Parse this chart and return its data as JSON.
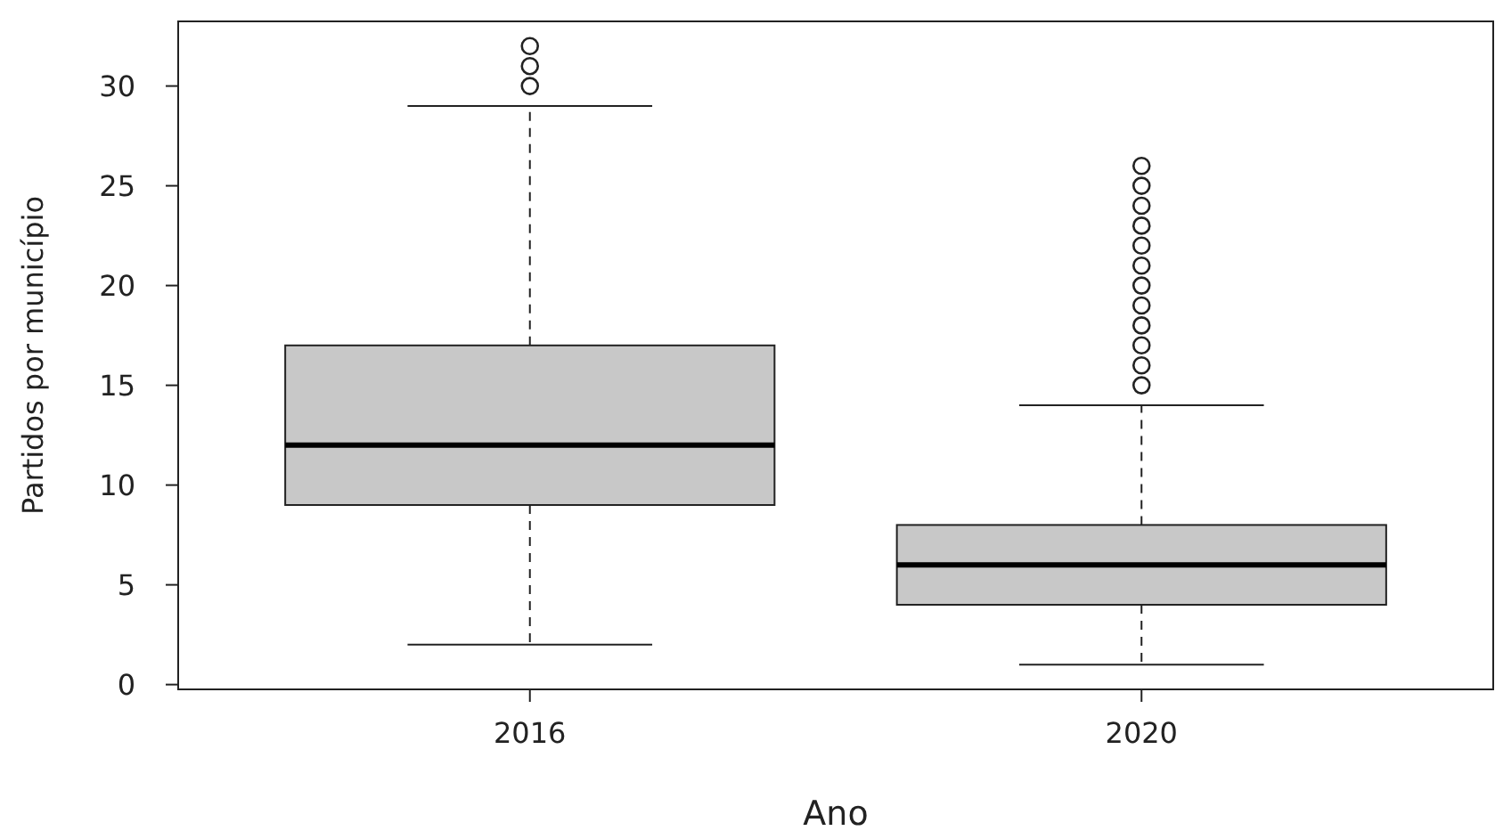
{
  "chart_data": {
    "type": "box",
    "xlabel": "Ano",
    "ylabel": "Partidos por município",
    "categories": [
      "2016",
      "2020"
    ],
    "boxes": [
      {
        "low": 2,
        "q1": 9,
        "median": 12,
        "q3": 17,
        "high": 29,
        "outliers": [
          30,
          31,
          32
        ]
      },
      {
        "low": 1,
        "q1": 4,
        "median": 6,
        "q3": 8,
        "high": 14,
        "outliers": [
          15,
          16,
          17,
          18,
          19,
          20,
          21,
          22,
          23,
          24,
          25,
          26
        ]
      }
    ],
    "color": "#c8c8c8",
    "ylim": [
      -0.24,
      33.24
    ],
    "yticks": [
      0,
      5,
      10,
      15,
      20,
      25,
      30
    ],
    "grid": false
  }
}
